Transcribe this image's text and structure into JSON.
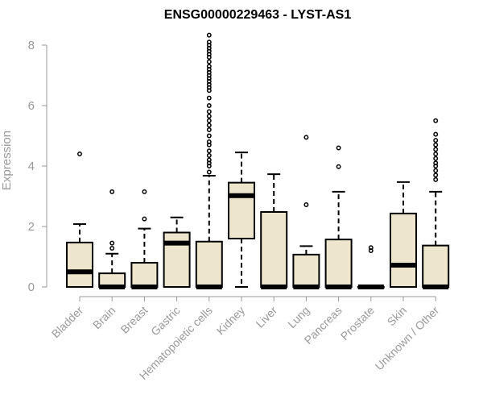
{
  "chart_data": {
    "type": "box",
    "title": "ENSG00000229463 - LYST-AS1",
    "ylabel": "Expression",
    "xlabel": "",
    "ylim": [
      0,
      8.4
    ],
    "yticks": [
      0,
      2,
      4,
      6,
      8
    ],
    "grid": false,
    "colors": {
      "box_fill": "#ede6cc",
      "stroke": "#000000",
      "axis": "#999999"
    },
    "categories": [
      "Bladder",
      "Brain",
      "Breast",
      "Gastric",
      "Hematopoietic cells",
      "Kidney",
      "Liver",
      "Lung",
      "Pancreas",
      "Prostate",
      "Skin",
      "Unknown / Other"
    ],
    "boxes": [
      {
        "q1": 0.0,
        "median": 0.5,
        "q3": 1.47,
        "whisker_low": 0.0,
        "whisker_high": 2.08,
        "outliers": [
          4.4
        ]
      },
      {
        "q1": 0.0,
        "median": 0.0,
        "q3": 0.45,
        "whisker_low": 0.0,
        "whisker_high": 1.1,
        "outliers": [
          1.28,
          1.45,
          3.15
        ]
      },
      {
        "q1": 0.0,
        "median": 0.0,
        "q3": 0.8,
        "whisker_low": 0.0,
        "whisker_high": 1.93,
        "outliers": [
          2.25,
          3.15
        ]
      },
      {
        "q1": 0.0,
        "median": 1.45,
        "q3": 1.8,
        "whisker_low": 0.0,
        "whisker_high": 2.3,
        "outliers": []
      },
      {
        "q1": 0.0,
        "median": 0.0,
        "q3": 1.5,
        "whisker_low": 0.0,
        "whisker_high": 3.68,
        "outliers": [
          3.8,
          4.0,
          4.1,
          4.2,
          4.35,
          4.5,
          4.7,
          4.8,
          5.0,
          5.2,
          5.35,
          5.5,
          5.65,
          5.8,
          6.0,
          6.25,
          6.5,
          6.6,
          6.7,
          6.8,
          6.9,
          7.0,
          7.1,
          7.2,
          7.3,
          7.45,
          7.6,
          7.7,
          7.8,
          7.9,
          8.0,
          8.1,
          8.33
        ]
      },
      {
        "q1": 1.6,
        "median": 3.02,
        "q3": 3.45,
        "whisker_low": 0.0,
        "whisker_high": 4.45,
        "outliers": []
      },
      {
        "q1": 0.0,
        "median": 0.0,
        "q3": 2.48,
        "whisker_low": 0.0,
        "whisker_high": 3.73,
        "outliers": []
      },
      {
        "q1": 0.0,
        "median": 0.0,
        "q3": 1.07,
        "whisker_low": 0.0,
        "whisker_high": 1.35,
        "outliers": [
          2.72,
          4.95
        ]
      },
      {
        "q1": 0.0,
        "median": 0.0,
        "q3": 1.57,
        "whisker_low": 0.0,
        "whisker_high": 3.15,
        "outliers": [
          3.98,
          4.6
        ]
      },
      {
        "q1": 0.0,
        "median": 0.0,
        "q3": 0.0,
        "whisker_low": 0.0,
        "whisker_high": 0.0,
        "outliers": [
          1.2,
          1.3
        ]
      },
      {
        "q1": 0.0,
        "median": 0.72,
        "q3": 2.43,
        "whisker_low": 0.0,
        "whisker_high": 3.47,
        "outliers": []
      },
      {
        "q1": 0.0,
        "median": 0.0,
        "q3": 1.37,
        "whisker_low": 0.0,
        "whisker_high": 3.15,
        "outliers": [
          3.55,
          3.7,
          3.85,
          4.0,
          4.1,
          4.25,
          4.4,
          4.55,
          4.7,
          4.85,
          5.05,
          5.5
        ]
      }
    ]
  }
}
